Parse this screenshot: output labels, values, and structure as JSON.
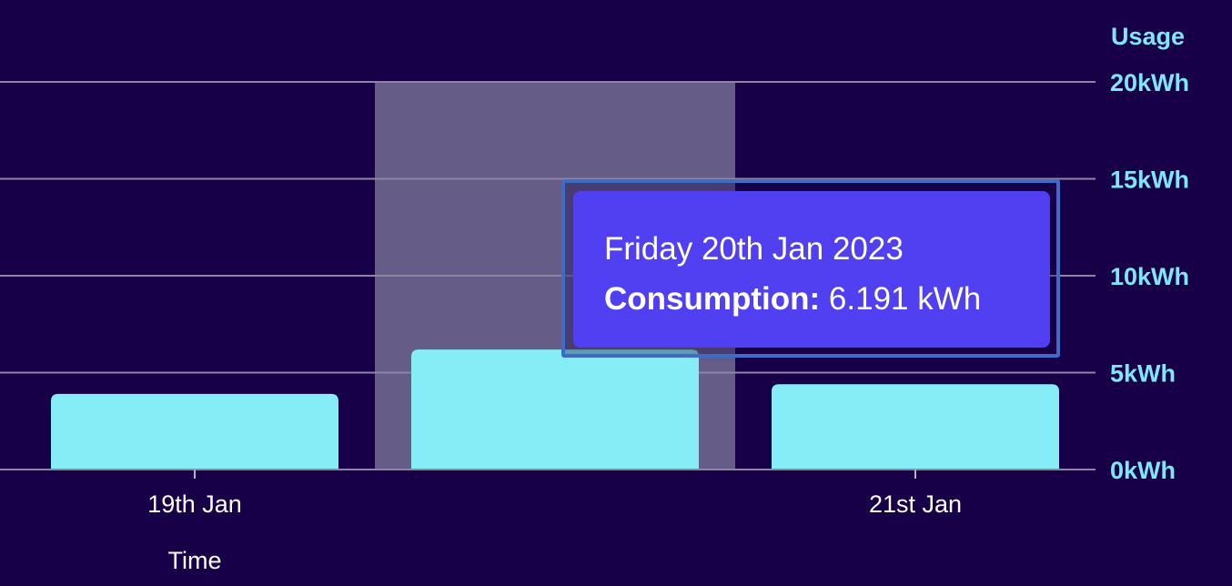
{
  "chart_data": {
    "type": "bar",
    "categories": [
      "19th Jan",
      "20th Jan",
      "21st Jan"
    ],
    "values": [
      3.9,
      6.191,
      4.4
    ],
    "xtick_labels": [
      "19th Jan",
      "",
      "21st Jan"
    ],
    "xlabel": "Time",
    "ylabel": "Usage",
    "ylim": [
      0,
      20
    ],
    "yticks": [
      0,
      5,
      10,
      15,
      20
    ],
    "ytick_labels": [
      "0kWh",
      "5kWh",
      "10kWh",
      "15kWh",
      "20kWh"
    ],
    "grid": true,
    "highlighted_index": 1,
    "colors": {
      "background": "#180048",
      "bar": "#86ecf5",
      "highlight_band": "#655c88",
      "gridline": "#8e84a6",
      "axis_text": "#7ee6f8",
      "tooltip_background": "#5040f2",
      "tooltip_border": "#3d6bc8"
    }
  },
  "tooltip": {
    "date": "Friday 20th Jan 2023",
    "label": "Consumption:",
    "value": "6.191 kWh"
  }
}
